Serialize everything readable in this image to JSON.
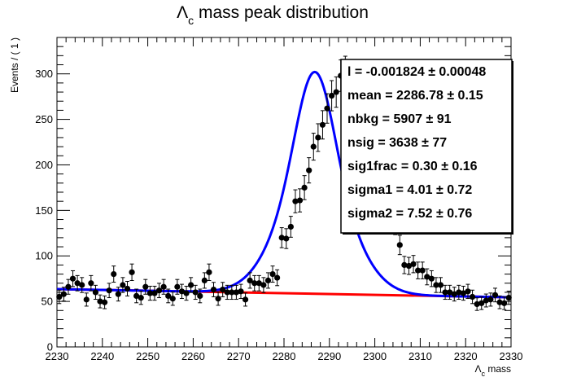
{
  "chart_data": {
    "type": "scatter",
    "title_symbol": "Λ",
    "title_sub": "c",
    "title_rest": " mass peak distribution",
    "xlabel_symbol": "Λ",
    "xlabel_sub": "c",
    "xlabel_rest": " mass",
    "ylabel": "Events / ( 1 )",
    "xlim": [
      2230,
      2330
    ],
    "ylim": [
      0,
      340
    ],
    "x_ticks": [
      2230,
      2240,
      2250,
      2260,
      2270,
      2280,
      2290,
      2300,
      2310,
      2320,
      2330
    ],
    "x_tick_labels": [
      "2230",
      "2240",
      "2250",
      "2260",
      "2270",
      "2280",
      "2290",
      "2300",
      "2310",
      "2320",
      "2330"
    ],
    "y_ticks": [
      0,
      50,
      100,
      150,
      200,
      250,
      300
    ],
    "y_tick_labels": [
      "0",
      "50",
      "100",
      "150",
      "200",
      "250",
      "300"
    ],
    "grid": false,
    "series": [
      {
        "kind": "data-points-with-error-bars",
        "color": "#000000",
        "x": [
          2230.5,
          2231.5,
          2232.5,
          2233.5,
          2234.5,
          2235.5,
          2236.5,
          2237.5,
          2238.5,
          2239.5,
          2240.5,
          2241.5,
          2242.5,
          2243.5,
          2244.5,
          2245.5,
          2246.5,
          2247.5,
          2248.5,
          2249.5,
          2250.5,
          2251.5,
          2252.5,
          2253.5,
          2254.5,
          2255.5,
          2256.5,
          2257.5,
          2258.5,
          2259.5,
          2260.5,
          2261.5,
          2262.5,
          2263.5,
          2264.5,
          2265.5,
          2266.5,
          2267.5,
          2268.5,
          2269.5,
          2270.5,
          2271.5,
          2272.5,
          2273.5,
          2274.5,
          2275.5,
          2276.5,
          2277.5,
          2278.5,
          2279.5,
          2280.5,
          2281.5,
          2282.5,
          2283.5,
          2284.5,
          2285.5,
          2286.5,
          2287.5,
          2288.5,
          2289.5,
          2290.5,
          2291.5,
          2292.5,
          2293.5,
          2294.5,
          2295.5,
          2296.5,
          2297.5,
          2298.5,
          2299.5,
          2300.5,
          2301.5,
          2302.5,
          2303.5,
          2304.5,
          2305.5,
          2306.5,
          2307.5,
          2308.5,
          2309.5,
          2310.5,
          2311.5,
          2312.5,
          2313.5,
          2314.5,
          2315.5,
          2316.5,
          2317.5,
          2318.5,
          2319.5,
          2320.5,
          2321.5,
          2322.5,
          2323.5,
          2324.5,
          2325.5,
          2326.5,
          2327.5,
          2328.5,
          2329.5
        ],
        "y": [
          55,
          58,
          66,
          75,
          70,
          68,
          52,
          70,
          60,
          50,
          49,
          62,
          80,
          58,
          68,
          64,
          82,
          56,
          54,
          66,
          59,
          59,
          62,
          66,
          56,
          53,
          66,
          61,
          59,
          68,
          60,
          56,
          73,
          82,
          63,
          53,
          63,
          60,
          60,
          60,
          61,
          52,
          73,
          70,
          70,
          68,
          73,
          80,
          76,
          120,
          119,
          132,
          160,
          161,
          175,
          194,
          220,
          230,
          244,
          262,
          276,
          280,
          298,
          302,
          295,
          283,
          283,
          270,
          240,
          235,
          220,
          207,
          165,
          155,
          135,
          112,
          90,
          89,
          91,
          84,
          84,
          77,
          75,
          68,
          68,
          60,
          60,
          58,
          60,
          59,
          61,
          55,
          47,
          48,
          51,
          52,
          57,
          49,
          48,
          54
        ],
        "yerr": [
          7.4,
          7.6,
          8.1,
          8.7,
          8.4,
          8.2,
          7.2,
          8.4,
          7.7,
          7.1,
          7.0,
          7.9,
          8.9,
          7.6,
          8.2,
          8.0,
          9.1,
          7.5,
          7.3,
          8.1,
          7.7,
          7.7,
          7.9,
          8.1,
          7.5,
          7.3,
          8.1,
          7.8,
          7.7,
          8.2,
          7.7,
          7.5,
          8.5,
          9.1,
          7.9,
          7.3,
          7.9,
          7.7,
          7.7,
          7.7,
          7.8,
          7.2,
          8.5,
          8.4,
          8.4,
          8.2,
          8.5,
          8.9,
          8.7,
          11.0,
          10.9,
          11.5,
          12.6,
          12.7,
          13.2,
          13.9,
          14.8,
          15.2,
          15.6,
          16.2,
          16.6,
          16.7,
          17.3,
          17.4,
          17.2,
          16.8,
          16.8,
          16.4,
          15.5,
          15.3,
          14.8,
          14.4,
          12.8,
          12.4,
          11.6,
          10.6,
          9.5,
          9.4,
          9.5,
          9.2,
          9.2,
          8.8,
          8.7,
          8.2,
          8.2,
          7.7,
          7.7,
          7.6,
          7.7,
          7.7,
          7.8,
          7.4,
          6.9,
          6.9,
          7.1,
          7.2,
          7.5,
          7.0,
          6.9,
          7.3
        ]
      },
      {
        "kind": "total-fit-curve",
        "color": "#0000ff",
        "model": "background + double-gaussian",
        "mean": 2286.78,
        "sigma1": 4.01,
        "sigma2": 7.52,
        "sig1frac": 0.3,
        "nsig": 3638,
        "nbkg": 5907,
        "slope": -0.001824
      },
      {
        "kind": "background-fit-curve",
        "color": "#ff0000",
        "model": "linear",
        "x": [
          2230,
          2330
        ],
        "y": [
          63.5,
          54.5
        ]
      }
    ],
    "stats_box": {
      "placement": "top-right",
      "lines": [
        "l = -0.001824 ± 0.00048",
        "mean =  2286.78 ± 0.15",
        "nbkg =  5907 ± 91",
        "nsig =  3638 ± 77",
        "sig1frac =  0.30 ± 0.16",
        "sigma1 =  4.01 ± 0.72",
        "sigma2 =  7.52 ± 0.76"
      ]
    }
  }
}
